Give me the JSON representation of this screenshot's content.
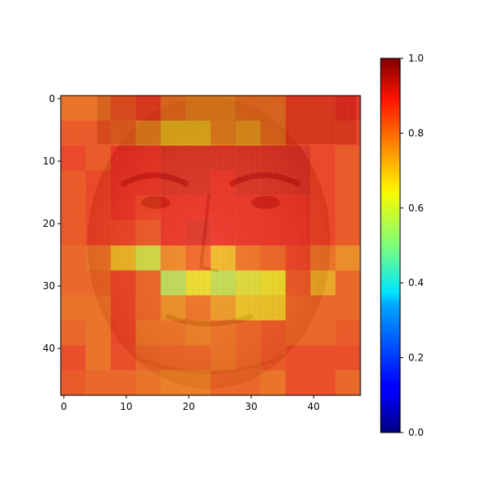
{
  "chart_data": {
    "type": "heatmap",
    "title": "",
    "xlabel": "",
    "ylabel": "",
    "x_ticks": [
      "0",
      "10",
      "20",
      "30",
      "40"
    ],
    "y_ticks": [
      "0",
      "10",
      "20",
      "30",
      "40"
    ],
    "xlim": [
      -0.5,
      47.5
    ],
    "ylim": [
      47.5,
      -0.5
    ],
    "grid_size": 48,
    "block_size": 4,
    "background_image": "grayscale face photograph (pixelated, 48x48)",
    "overlay": "attention heatmap with 4x4 blocks, semi-transparent",
    "colormap": "jet",
    "colorbar": {
      "min": 0.0,
      "max": 1.0,
      "ticks": [
        "0.0",
        "0.2",
        "0.4",
        "0.6",
        "0.8",
        "1.0"
      ]
    },
    "values": [
      [
        0.78,
        0.78,
        0.82,
        0.85,
        0.78,
        0.75,
        0.75,
        0.78,
        0.78,
        0.85,
        0.85,
        0.88
      ],
      [
        0.82,
        0.82,
        0.8,
        0.75,
        0.68,
        0.68,
        0.75,
        0.72,
        0.78,
        0.85,
        0.85,
        0.85
      ],
      [
        0.85,
        0.82,
        0.88,
        0.88,
        0.9,
        0.9,
        0.9,
        0.9,
        0.9,
        0.9,
        0.85,
        0.82
      ],
      [
        0.82,
        0.85,
        0.88,
        0.88,
        0.9,
        0.9,
        0.88,
        0.9,
        0.9,
        0.9,
        0.85,
        0.82
      ],
      [
        0.82,
        0.85,
        0.88,
        0.85,
        0.88,
        0.88,
        0.88,
        0.88,
        0.88,
        0.88,
        0.85,
        0.82
      ],
      [
        0.82,
        0.85,
        0.85,
        0.82,
        0.88,
        0.9,
        0.88,
        0.88,
        0.88,
        0.88,
        0.85,
        0.82
      ],
      [
        0.8,
        0.78,
        0.68,
        0.58,
        0.75,
        0.8,
        0.68,
        0.78,
        0.8,
        0.85,
        0.78,
        0.74
      ],
      [
        0.8,
        0.8,
        0.85,
        0.8,
        0.55,
        0.62,
        0.56,
        0.6,
        0.62,
        0.82,
        0.7,
        0.8
      ],
      [
        0.78,
        0.78,
        0.85,
        0.8,
        0.74,
        0.78,
        0.72,
        0.66,
        0.66,
        0.8,
        0.8,
        0.8
      ],
      [
        0.8,
        0.78,
        0.85,
        0.78,
        0.78,
        0.76,
        0.78,
        0.8,
        0.82,
        0.8,
        0.8,
        0.82
      ],
      [
        0.84,
        0.78,
        0.84,
        0.8,
        0.8,
        0.8,
        0.78,
        0.8,
        0.82,
        0.84,
        0.84,
        0.84
      ],
      [
        0.82,
        0.8,
        0.8,
        0.78,
        0.76,
        0.76,
        0.8,
        0.8,
        0.78,
        0.84,
        0.84,
        0.8
      ]
    ]
  }
}
